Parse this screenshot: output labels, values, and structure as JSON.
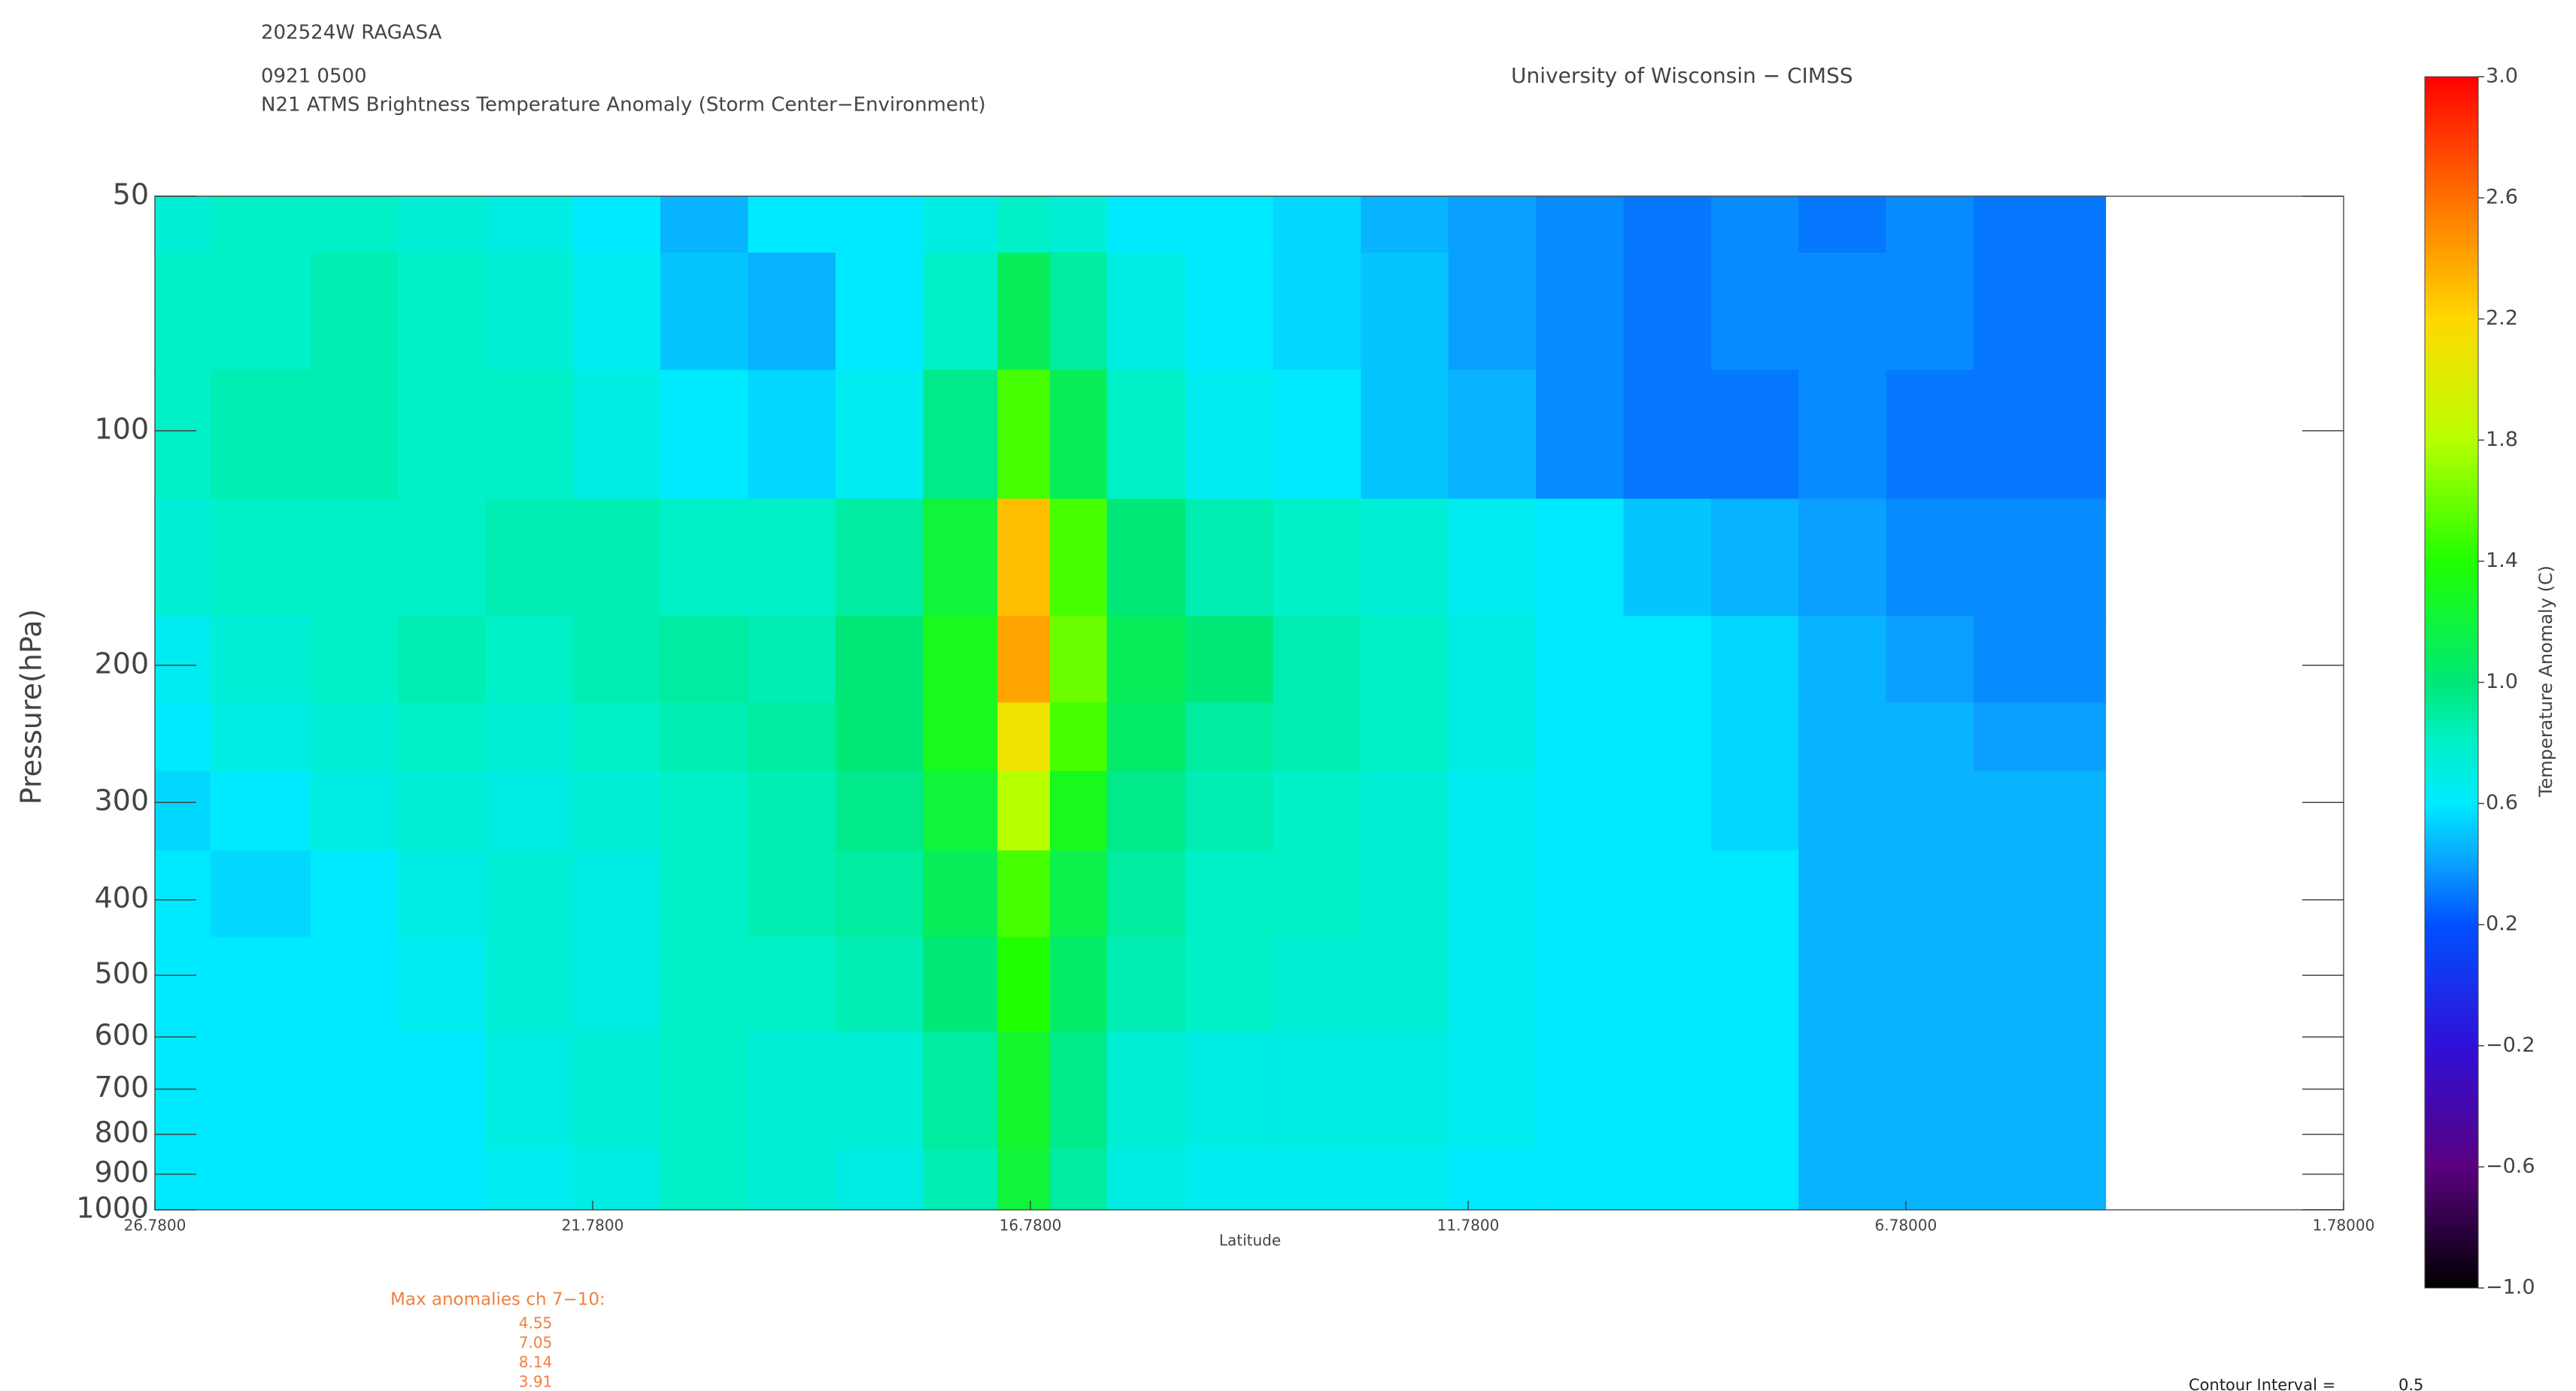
{
  "chart_data": {
    "type": "contour",
    "title": [
      "202524W RAGASA",
      "0921 0500",
      "N21 ATMS Brightness Temperature Anomaly (Storm Center−Environment)"
    ],
    "source": "University of Wisconsin − CIMSS",
    "x_label": "Latitude",
    "y_label": "Pressure(hPa)",
    "colorbar_label": "Temperature Anomaly (C)",
    "xlim": [
      26.78,
      1.78
    ],
    "xticks": [
      {
        "value": 26.78,
        "label": "26.7800"
      },
      {
        "value": 21.78,
        "label": "21.7800"
      },
      {
        "value": 16.78,
        "label": "16.7800"
      },
      {
        "value": 11.78,
        "label": "11.7800"
      },
      {
        "value": 6.78,
        "label": "6.78000"
      },
      {
        "value": 1.78,
        "label": "1.78000"
      }
    ],
    "ylim": [
      1000,
      50
    ],
    "log_y": true,
    "yticks": [
      50,
      100,
      200,
      300,
      400,
      500,
      600,
      700,
      800,
      900,
      1000
    ],
    "colorbar_lim": [
      -1,
      3
    ],
    "colorbar_ticks": [
      {
        "value": 3.0,
        "label": "3.0"
      },
      2.6,
      2.2,
      1.8,
      1.4,
      {
        "value": 1.0,
        "label": "1.0"
      },
      0.6,
      0.2,
      {
        "value": -0.2,
        "label": "−0.2"
      },
      {
        "value": -0.6,
        "label": "−0.6"
      },
      {
        "value": -1.0,
        "label": "−1.0"
      }
    ],
    "colormap": [
      {
        "value": -1,
        "color": "#000000"
      },
      {
        "value": -0.6,
        "color": "#5a0080"
      },
      {
        "value": -0.2,
        "color": "#3010d8"
      },
      {
        "value": 0.2,
        "color": "#0050ff"
      },
      {
        "value": 0.4,
        "color": "#0aa0ff"
      },
      {
        "value": 0.6,
        "color": "#00eaff"
      },
      {
        "value": 0.8,
        "color": "#00f0c8"
      },
      {
        "value": 1.0,
        "color": "#00e878"
      },
      {
        "value": 1.4,
        "color": "#20ff00"
      },
      {
        "value": 1.8,
        "color": "#b8ff00"
      },
      {
        "value": 2.2,
        "color": "#ffd800"
      },
      {
        "value": 2.6,
        "color": "#ff7000"
      },
      {
        "value": 3.0,
        "color": "#ff0000"
      }
    ],
    "x": [
      26.78,
      25.5,
      24.5,
      23.5,
      22.5,
      21.5,
      20.5,
      19.5,
      18.5,
      17.5,
      16.8,
      16.3,
      15.5,
      14.5,
      13.5,
      12.5,
      11.5,
      10.5,
      9.5,
      8.5,
      7.5,
      6.5,
      5.5,
      4.5
    ],
    "levels": [
      50,
      70,
      100,
      150,
      200,
      250,
      300,
      400,
      500,
      700,
      1000
    ],
    "z": [
      [
        0.75,
        0.8,
        0.8,
        0.75,
        0.7,
        0.6,
        0.45,
        0.6,
        0.6,
        0.7,
        0.8,
        0.75,
        0.6,
        0.6,
        0.55,
        0.45,
        0.4,
        0.35,
        0.3,
        0.35,
        0.3,
        0.35,
        0.3,
        0.3
      ],
      [
        0.8,
        0.8,
        0.85,
        0.8,
        0.75,
        0.65,
        0.5,
        0.45,
        0.6,
        0.8,
        1.1,
        0.9,
        0.7,
        0.6,
        0.55,
        0.5,
        0.4,
        0.35,
        0.3,
        0.35,
        0.35,
        0.35,
        0.3,
        0.3
      ],
      [
        0.8,
        0.85,
        0.85,
        0.8,
        0.8,
        0.7,
        0.6,
        0.55,
        0.65,
        0.95,
        1.5,
        1.1,
        0.8,
        0.65,
        0.6,
        0.5,
        0.45,
        0.35,
        0.3,
        0.3,
        0.35,
        0.3,
        0.3,
        0.3
      ],
      [
        0.75,
        0.8,
        0.8,
        0.8,
        0.85,
        0.85,
        0.8,
        0.8,
        0.9,
        1.2,
        2.3,
        1.5,
        1.0,
        0.85,
        0.8,
        0.75,
        0.65,
        0.6,
        0.5,
        0.45,
        0.4,
        0.35,
        0.35,
        0.35
      ],
      [
        0.65,
        0.75,
        0.8,
        0.85,
        0.8,
        0.85,
        0.9,
        0.85,
        1.0,
        1.3,
        2.4,
        1.6,
        1.1,
        1.0,
        0.85,
        0.8,
        0.7,
        0.6,
        0.6,
        0.55,
        0.45,
        0.4,
        0.35,
        0.35
      ],
      [
        0.6,
        0.7,
        0.75,
        0.8,
        0.75,
        0.8,
        0.85,
        0.9,
        1.0,
        1.3,
        2.1,
        1.5,
        1.05,
        0.9,
        0.85,
        0.8,
        0.7,
        0.6,
        0.6,
        0.55,
        0.45,
        0.45,
        0.4,
        0.4
      ],
      [
        0.55,
        0.6,
        0.7,
        0.75,
        0.7,
        0.75,
        0.8,
        0.85,
        0.95,
        1.2,
        1.8,
        1.3,
        0.95,
        0.85,
        0.8,
        0.75,
        0.65,
        0.6,
        0.6,
        0.55,
        0.45,
        0.45,
        0.45,
        0.45
      ],
      [
        0.6,
        0.55,
        0.6,
        0.7,
        0.75,
        0.7,
        0.8,
        0.85,
        0.9,
        1.1,
        1.5,
        1.15,
        0.9,
        0.8,
        0.8,
        0.75,
        0.65,
        0.6,
        0.6,
        0.6,
        0.45,
        0.45,
        0.45,
        0.45
      ],
      [
        0.6,
        0.6,
        0.6,
        0.65,
        0.75,
        0.7,
        0.8,
        0.8,
        0.85,
        1.0,
        1.4,
        1.05,
        0.85,
        0.8,
        0.75,
        0.75,
        0.65,
        0.6,
        0.6,
        0.6,
        0.45,
        0.45,
        0.45,
        0.45
      ],
      [
        0.6,
        0.6,
        0.6,
        0.6,
        0.7,
        0.75,
        0.8,
        0.75,
        0.75,
        0.9,
        1.25,
        0.95,
        0.75,
        0.7,
        0.7,
        0.7,
        0.65,
        0.6,
        0.6,
        0.6,
        0.45,
        0.45,
        0.45,
        0.45
      ],
      [
        0.6,
        0.6,
        0.6,
        0.6,
        0.65,
        0.7,
        0.8,
        0.75,
        0.7,
        0.85,
        1.2,
        0.9,
        0.7,
        0.65,
        0.65,
        0.65,
        0.6,
        0.6,
        0.6,
        0.6,
        0.45,
        0.45,
        0.45,
        0.45
      ]
    ],
    "max_anomalies_title": "Max anomalies ch 7−10:",
    "max_anomalies": [
      4.55,
      7.05,
      8.14,
      3.91
    ],
    "contour_interval_label": "Contour Interval =",
    "contour_interval": 0.5
  }
}
